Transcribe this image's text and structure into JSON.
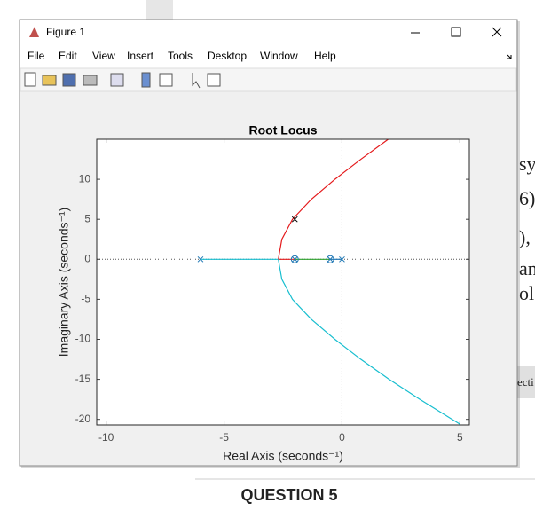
{
  "window": {
    "title": "Figure 1",
    "menu": [
      "File",
      "Edit",
      "View",
      "Insert",
      "Tools",
      "Desktop",
      "Window",
      "Help"
    ]
  },
  "document": {
    "fragments": [
      "sy",
      "6)",
      "),",
      "an",
      "ol",
      "ecti"
    ],
    "question": "QUESTION 5"
  },
  "chart_data": {
    "type": "line",
    "title": "Root Locus",
    "x_label": "Real Axis (seconds⁻¹)",
    "y_label": "Imaginary Axis (seconds⁻¹)",
    "xlim": [
      -10.4,
      5.4
    ],
    "ylim": [
      -20.7,
      15
    ],
    "xticks": [
      -10,
      -5,
      0,
      5
    ],
    "yticks": [
      -20,
      -15,
      -10,
      -5,
      0,
      5,
      10
    ],
    "origin_lines": true,
    "series": [
      {
        "color": "#e41a1c",
        "x": [
          -2.7,
          -2.55,
          -2.1,
          -1.3,
          -0.3,
          0.8,
          1.96
        ],
        "values": [
          0,
          2.5,
          5,
          7.5,
          10,
          12.5,
          15
        ]
      },
      {
        "color": "#17becf",
        "x": [
          -2.7,
          -2.55,
          -2.1,
          -1.3,
          -0.3,
          0.8,
          2.0,
          3.3,
          5.0
        ],
        "values": [
          0,
          -2.5,
          -5,
          -7.5,
          -10,
          -12.5,
          -15,
          -17.5,
          -20.6
        ]
      },
      {
        "color": "#17becf",
        "x": [
          -6,
          -2.7
        ],
        "values": [
          0,
          0
        ]
      },
      {
        "color": "#e41a1c",
        "x": [
          -2.7,
          -2
        ],
        "values": [
          0,
          0
        ]
      },
      {
        "color": "#2ca02c",
        "x": [
          -2,
          -0.5
        ],
        "values": [
          0,
          0
        ]
      },
      {
        "color": "#1f77b4",
        "x": [
          -0.5,
          0
        ],
        "values": [
          0,
          0
        ]
      },
      {
        "color": "#1f77b4",
        "marker": "x",
        "x": [
          -6,
          -2,
          -0.5,
          0
        ],
        "values": [
          0,
          0,
          0,
          0
        ]
      },
      {
        "color": "#1f77b4",
        "marker": "o",
        "x": [
          -2,
          -0.5
        ],
        "values": [
          0,
          0
        ]
      },
      {
        "color": "#000000",
        "marker": "x",
        "x": [
          -2
        ],
        "values": [
          5
        ]
      }
    ]
  }
}
